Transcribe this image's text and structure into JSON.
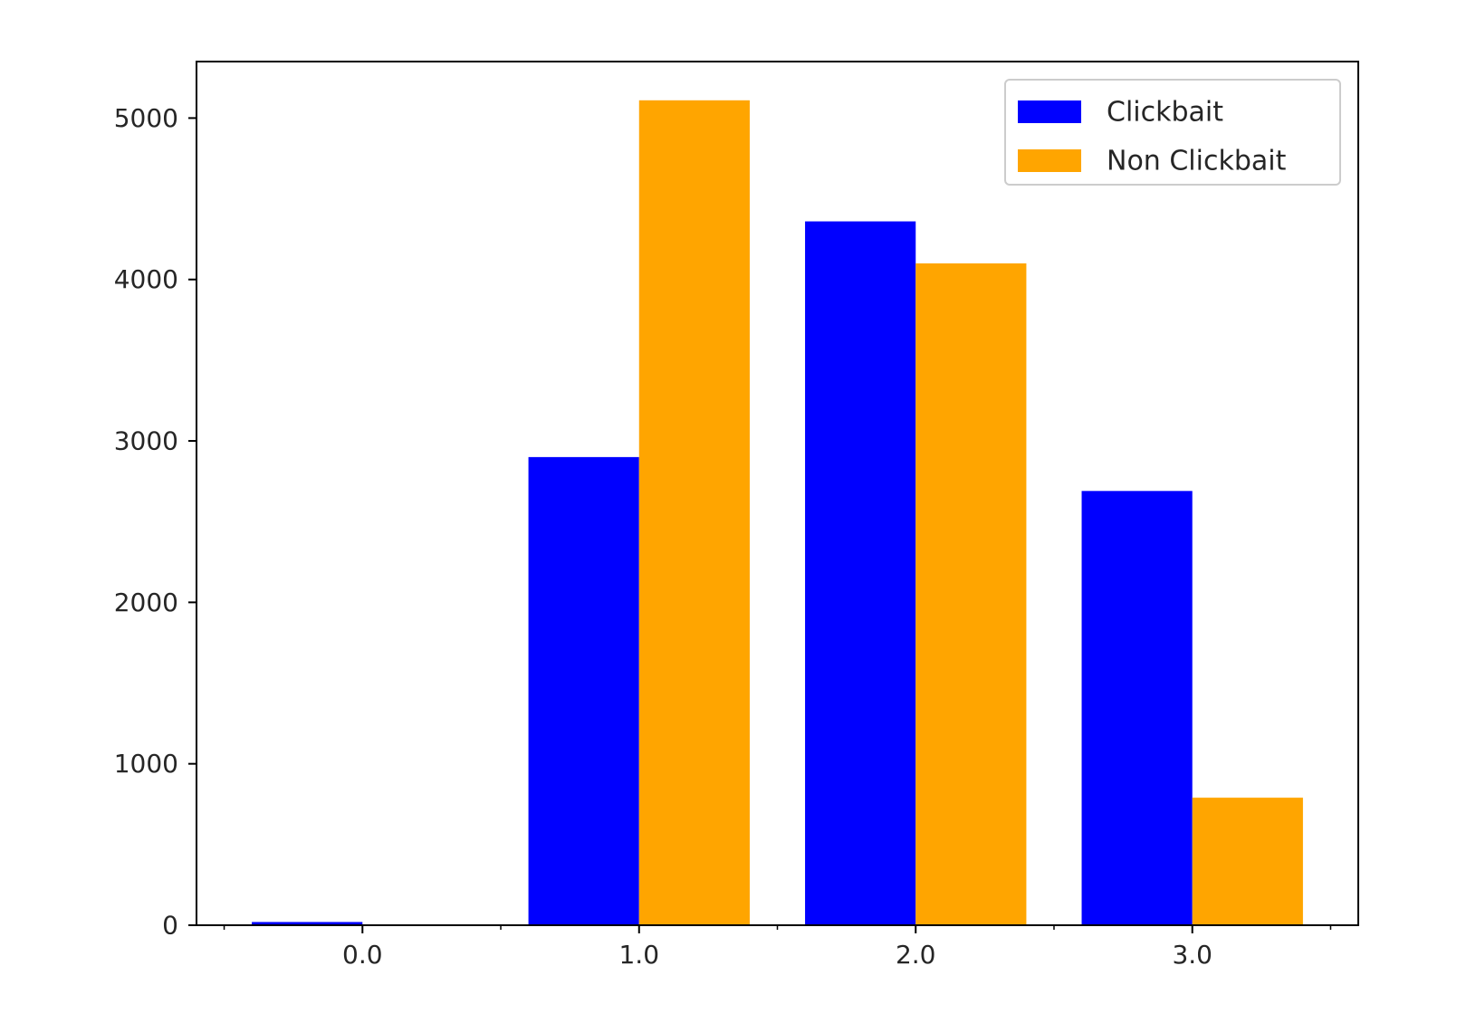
{
  "chart_data": {
    "type": "bar",
    "categories": [
      "0.0",
      "1.0",
      "2.0",
      "3.0"
    ],
    "x": [
      0,
      1,
      2,
      3
    ],
    "series": [
      {
        "name": "Clickbait",
        "values": [
          20,
          2900,
          4360,
          2690
        ],
        "color": "#0000ff"
      },
      {
        "name": "Non Clickbait",
        "values": [
          0,
          5110,
          4100,
          790
        ],
        "color": "#ffa500"
      }
    ],
    "title": "",
    "xlabel": "",
    "ylabel": "",
    "xlim": [
      -0.6,
      3.6
    ],
    "ylim": [
      0,
      5350
    ],
    "yticks": [
      0,
      1000,
      2000,
      3000,
      4000,
      5000
    ],
    "xticks": [
      0,
      1,
      2,
      3
    ],
    "xminor_ticks": [
      -0.5,
      0.5,
      1.5,
      2.5,
      3.5
    ],
    "bar_group_width": 0.8,
    "legend": {
      "position": "upper right"
    },
    "grid": false
  }
}
